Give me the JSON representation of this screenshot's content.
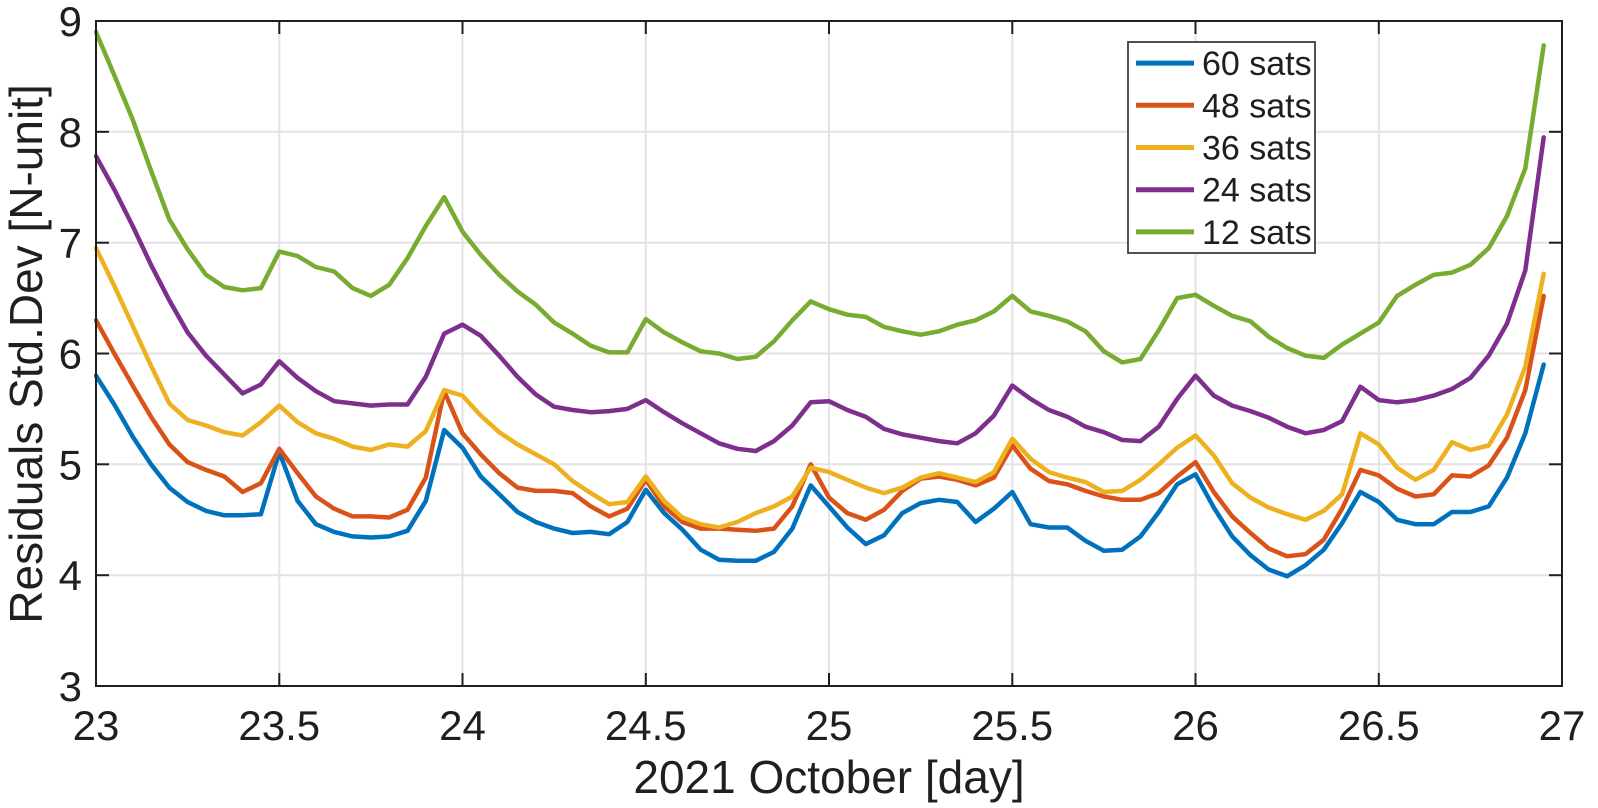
{
  "figure": {
    "background_color": "#ffffff",
    "frame_color": "#1f1f1f",
    "grid_color": "#e3e3e3",
    "text_color": "#1f1f1f",
    "legend_border_color": "#3d3d3d"
  },
  "chart_data": {
    "type": "line",
    "title": "",
    "xlabel": "2021 October [day]",
    "ylabel": "Residuals Std.Dev [N-unit]",
    "xlim": [
      23,
      27
    ],
    "ylim": [
      3,
      9
    ],
    "grid": true,
    "legend_position": "top-right",
    "xticks": [
      23,
      23.5,
      24,
      24.5,
      25,
      25.5,
      26,
      26.5,
      27
    ],
    "xtick_labels": [
      "23",
      "23.5",
      "24",
      "24.5",
      "25",
      "25.5",
      "26",
      "26.5",
      "27"
    ],
    "yticks": [
      3,
      4,
      5,
      6,
      7,
      8,
      9
    ],
    "ytick_labels": [
      "3",
      "4",
      "5",
      "6",
      "7",
      "8",
      "9"
    ],
    "x": [
      23.0,
      23.05,
      23.1,
      23.15,
      23.2,
      23.25,
      23.3,
      23.35,
      23.4,
      23.45,
      23.5,
      23.55,
      23.6,
      23.65,
      23.7,
      23.75,
      23.8,
      23.85,
      23.9,
      23.95,
      24.0,
      24.05,
      24.1,
      24.15,
      24.2,
      24.25,
      24.3,
      24.35,
      24.4,
      24.45,
      24.5,
      24.55,
      24.6,
      24.65,
      24.7,
      24.75,
      24.8,
      24.85,
      24.9,
      24.95,
      25.0,
      25.05,
      25.1,
      25.15,
      25.2,
      25.25,
      25.3,
      25.35,
      25.4,
      25.45,
      25.5,
      25.55,
      25.6,
      25.65,
      25.7,
      25.75,
      25.8,
      25.85,
      25.9,
      25.95,
      26.0,
      26.05,
      26.1,
      26.15,
      26.2,
      26.25,
      26.3,
      26.35,
      26.4,
      26.45,
      26.5,
      26.55,
      26.6,
      26.65,
      26.7,
      26.75,
      26.8,
      26.85,
      26.9,
      26.95
    ],
    "series": [
      {
        "name": "60 sats",
        "color": "#0072BD",
        "values": [
          5.8,
          5.54,
          5.25,
          5.0,
          4.79,
          4.66,
          4.58,
          4.54,
          4.54,
          4.55,
          5.11,
          4.67,
          4.46,
          4.39,
          4.35,
          4.34,
          4.35,
          4.4,
          4.67,
          5.31,
          5.15,
          4.89,
          4.73,
          4.57,
          4.48,
          4.42,
          4.38,
          4.39,
          4.37,
          4.48,
          4.77,
          4.56,
          4.41,
          4.23,
          4.14,
          4.13,
          4.13,
          4.21,
          4.42,
          4.81,
          4.62,
          4.43,
          4.28,
          4.36,
          4.56,
          4.65,
          4.68,
          4.66,
          4.48,
          4.6,
          4.75,
          4.46,
          4.43,
          4.43,
          4.31,
          4.22,
          4.23,
          4.35,
          4.57,
          4.82,
          4.91,
          4.61,
          4.35,
          4.18,
          4.05,
          3.99,
          4.09,
          4.23,
          4.47,
          4.75,
          4.66,
          4.5,
          4.46,
          4.46,
          4.57,
          4.57,
          4.62,
          4.88,
          5.28,
          5.9
        ]
      },
      {
        "name": "48 sats",
        "color": "#D95319",
        "values": [
          6.3,
          6.0,
          5.71,
          5.43,
          5.18,
          5.02,
          4.95,
          4.89,
          4.75,
          4.83,
          5.14,
          4.92,
          4.71,
          4.6,
          4.53,
          4.53,
          4.52,
          4.59,
          4.88,
          5.66,
          5.28,
          5.09,
          4.92,
          4.79,
          4.76,
          4.76,
          4.74,
          4.62,
          4.53,
          4.6,
          4.86,
          4.62,
          4.48,
          4.42,
          4.42,
          4.41,
          4.4,
          4.42,
          4.62,
          5.0,
          4.7,
          4.56,
          4.5,
          4.59,
          4.76,
          4.87,
          4.89,
          4.86,
          4.81,
          4.88,
          5.17,
          4.96,
          4.85,
          4.82,
          4.76,
          4.71,
          4.68,
          4.68,
          4.74,
          4.89,
          5.02,
          4.75,
          4.53,
          4.38,
          4.24,
          4.17,
          4.19,
          4.32,
          4.6,
          4.95,
          4.9,
          4.78,
          4.71,
          4.73,
          4.9,
          4.89,
          4.99,
          5.24,
          5.67,
          6.52
        ]
      },
      {
        "name": "36 sats",
        "color": "#EDB120",
        "values": [
          6.95,
          6.61,
          6.25,
          5.89,
          5.55,
          5.4,
          5.35,
          5.29,
          5.26,
          5.38,
          5.53,
          5.38,
          5.28,
          5.23,
          5.16,
          5.13,
          5.18,
          5.16,
          5.3,
          5.67,
          5.62,
          5.44,
          5.29,
          5.18,
          5.09,
          5.0,
          4.85,
          4.74,
          4.64,
          4.66,
          4.89,
          4.67,
          4.52,
          4.46,
          4.43,
          4.48,
          4.56,
          4.62,
          4.71,
          4.97,
          4.93,
          4.86,
          4.79,
          4.74,
          4.79,
          4.88,
          4.92,
          4.88,
          4.84,
          4.93,
          5.23,
          5.05,
          4.93,
          4.88,
          4.84,
          4.75,
          4.76,
          4.86,
          5.0,
          5.15,
          5.26,
          5.08,
          4.83,
          4.7,
          4.61,
          4.55,
          4.5,
          4.58,
          4.73,
          5.28,
          5.18,
          4.97,
          4.86,
          4.95,
          5.2,
          5.13,
          5.17,
          5.45,
          5.88,
          6.72
        ]
      },
      {
        "name": "24 sats",
        "color": "#7E2F8E",
        "values": [
          7.78,
          7.48,
          7.15,
          6.8,
          6.48,
          6.19,
          5.98,
          5.81,
          5.64,
          5.72,
          5.93,
          5.78,
          5.66,
          5.57,
          5.55,
          5.53,
          5.54,
          5.54,
          5.79,
          6.18,
          6.26,
          6.16,
          5.98,
          5.79,
          5.63,
          5.52,
          5.49,
          5.47,
          5.48,
          5.5,
          5.58,
          5.47,
          5.37,
          5.28,
          5.19,
          5.14,
          5.12,
          5.21,
          5.35,
          5.56,
          5.57,
          5.49,
          5.43,
          5.32,
          5.27,
          5.24,
          5.21,
          5.19,
          5.28,
          5.44,
          5.71,
          5.59,
          5.49,
          5.43,
          5.34,
          5.29,
          5.22,
          5.21,
          5.34,
          5.59,
          5.8,
          5.62,
          5.53,
          5.48,
          5.42,
          5.34,
          5.28,
          5.31,
          5.39,
          5.7,
          5.58,
          5.56,
          5.58,
          5.62,
          5.68,
          5.78,
          5.98,
          6.27,
          6.75,
          7.95
        ]
      },
      {
        "name": "12 sats",
        "color": "#77AC30",
        "values": [
          8.9,
          8.51,
          8.11,
          7.65,
          7.21,
          6.94,
          6.71,
          6.6,
          6.57,
          6.59,
          6.92,
          6.88,
          6.78,
          6.74,
          6.59,
          6.52,
          6.62,
          6.86,
          7.15,
          7.41,
          7.1,
          6.89,
          6.71,
          6.56,
          6.44,
          6.28,
          6.18,
          6.07,
          6.01,
          6.01,
          6.31,
          6.19,
          6.1,
          6.02,
          6.0,
          5.95,
          5.97,
          6.11,
          6.3,
          6.47,
          6.4,
          6.35,
          6.33,
          6.24,
          6.2,
          6.17,
          6.2,
          6.26,
          6.3,
          6.38,
          6.52,
          6.38,
          6.34,
          6.29,
          6.2,
          6.02,
          5.92,
          5.95,
          6.21,
          6.5,
          6.53,
          6.43,
          6.34,
          6.29,
          6.15,
          6.05,
          5.98,
          5.96,
          6.08,
          6.18,
          6.28,
          6.52,
          6.62,
          6.71,
          6.73,
          6.8,
          6.95,
          7.24,
          7.67,
          8.78
        ]
      }
    ]
  }
}
